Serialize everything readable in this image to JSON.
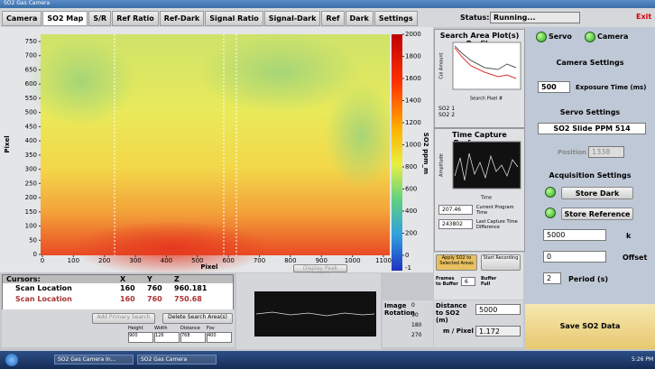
{
  "window": {
    "title": "SO2 Gas Camera"
  },
  "tabs": [
    "Camera",
    "SO2 Map",
    "S/R",
    "Ref Ratio",
    "Ref-Dark",
    "Signal Ratio",
    "Signal-Dark",
    "Ref",
    "Dark",
    "Settings"
  ],
  "status": {
    "label": "Status:",
    "value": "Running...",
    "exit": "Exit"
  },
  "map": {
    "y_label": "Pixel",
    "x_label": "Pixel",
    "yticks": [
      0,
      50,
      100,
      150,
      200,
      250,
      300,
      350,
      400,
      450,
      500,
      550,
      600,
      650,
      700,
      750
    ],
    "xticks": [
      0,
      100,
      200,
      300,
      400,
      500,
      600,
      700,
      800,
      900,
      1000,
      1100
    ],
    "colorbar_label": "SO2 ppm_m",
    "colorbar_ticks": [
      0,
      200,
      400,
      600,
      800,
      1000,
      1200,
      1400,
      1600,
      1800,
      2000
    ],
    "colorbar_min": -1,
    "button": "Display Peak Widths"
  },
  "cursors": {
    "header": [
      "Cursors:",
      "X",
      "Y",
      "Z"
    ],
    "rows": [
      [
        "Scan Location",
        160,
        760,
        960.181
      ],
      [
        "Scan Location",
        160,
        760,
        750.68
      ]
    ]
  },
  "search_controls": {
    "add": "Add Primary Search",
    "delete": "Delete Search Area(s)",
    "fields": [
      {
        "label": "Height",
        "value": 900
      },
      {
        "label": "Width",
        "value": 126
      },
      {
        "label": "Distance",
        "value": 768
      },
      {
        "label": "Fov",
        "value": 400
      }
    ]
  },
  "profile": {
    "title": "Search Area Plot(s) Profile",
    "y_label": "Col Amount",
    "x_label": "Search Pixel #",
    "legend": [
      "SO2 1",
      "SO2 2"
    ]
  },
  "timing": {
    "title": "Time Capture Performance",
    "y_label": "Amplitude",
    "x_label": "Time",
    "program_time": 207.46,
    "program_time_label": "Current Program Time",
    "capture_diff": 243802,
    "capture_diff_label": "Last Capture Time Difference"
  },
  "recording": {
    "apply": "Apply SO2 to Selected Areas",
    "start": "Start Recording",
    "frames_label": "Frames to Buffer",
    "frames": 6,
    "buffer_full": "Buffer Full"
  },
  "rotation": {
    "label": "Image Rotation",
    "options": [
      0,
      90,
      180,
      270
    ]
  },
  "distance": {
    "label": "Distance to SO2 (m)",
    "value": 5000,
    "m_per_pixel_label": "m / Pixel",
    "m_per_pixel": 1.172
  },
  "panel": {
    "servo": "Servo",
    "camera": "Camera",
    "camera_settings": "Camera Settings",
    "exposure": 500,
    "exposure_label": "Exposure Time (ms)",
    "servo_settings": "Servo Settings",
    "servo_select": "SO2 Slide PPM 514",
    "position_label": "Position",
    "position": 1338,
    "acquisition_settings": "Acquisition Settings",
    "store_dark": "Store Dark",
    "store_reference": "Store Reference",
    "k": 5000,
    "k_label": "k",
    "offset": 0,
    "offset_label": "Offset",
    "period": 2,
    "period_label": "Period (s)",
    "save": "Save SO2 Data"
  },
  "taskbar": {
    "items": [
      "SO2 Gas Camera In...",
      "SO2 Gas Camera"
    ],
    "time": "5:26 PM"
  }
}
